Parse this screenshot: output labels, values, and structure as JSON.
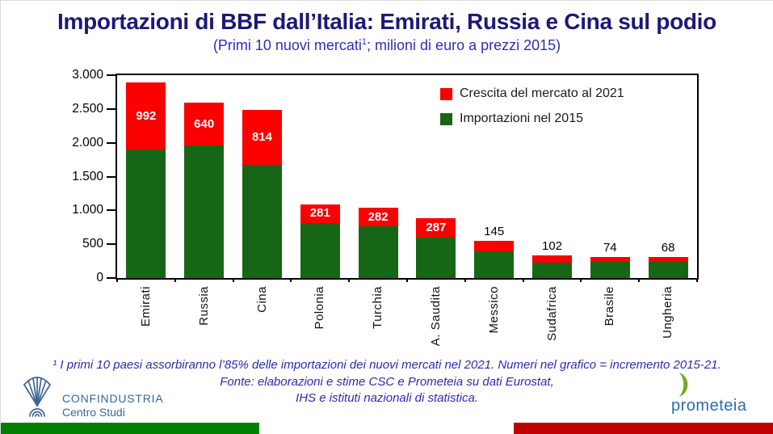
{
  "header": {
    "title": "Importazioni di BBF dall’Italia: Emirati, Russia e Cina sul podio",
    "subtitle_pre": "(Primi 10 nuovi mercati",
    "subtitle_sup": "1",
    "subtitle_post": "; milioni di euro a prezzi 2015)"
  },
  "colors": {
    "title": "#1d1878",
    "subtitle": "#2e2eb8",
    "footnote": "#2b2bb0"
  },
  "chart_data": {
    "type": "bar",
    "stacked": true,
    "categories": [
      "Emirati",
      "Russia",
      "Cina",
      "Polonia",
      "Turchia",
      "A. Saudita",
      "Messico",
      "Sudafrica",
      "Brasile",
      "Ungheria"
    ],
    "series": [
      {
        "name": "Importazioni nel 2015",
        "color": "#176617",
        "values": [
          1900,
          1955,
          1670,
          810,
          760,
          600,
          400,
          230,
          240,
          240
        ]
      },
      {
        "name": "Crescita del mercato al 2021",
        "color": "#fa0000",
        "values": [
          992,
          640,
          814,
          281,
          282,
          287,
          145,
          102,
          74,
          68
        ]
      }
    ],
    "data_labels": [
      992,
      640,
      814,
      281,
      282,
      287,
      145,
      102,
      74,
      68
    ],
    "ylim": [
      0,
      3000
    ],
    "yticks": [
      "3.000",
      "2.500",
      "2.000",
      "1.500",
      "1.000",
      "500",
      "0"
    ],
    "grid": false,
    "legend_position": "top-right-inside",
    "legend": [
      {
        "label": "Crescita del mercato al 2021",
        "color": "#fa0000"
      },
      {
        "label": "Importazioni nel 2015",
        "color": "#176617"
      }
    ]
  },
  "footnote": {
    "line1": "¹ I primi 10 paesi assorbiranno l’85% delle importazioni dei nuovi mercati nel 2021. Numeri nel grafico = incremento 2015-21.",
    "line2": "Fonte: elaborazioni e stime CSC e Prometeia  su dati Eurostat,",
    "line3": "IHS e istituti nazionali di statistica."
  },
  "logos": {
    "confindustria": {
      "name": "CONFINDUSTRIA",
      "sub": "Centro Studi",
      "color": "#3d6593"
    },
    "prometeia": {
      "name": "prometeia",
      "text_color": "#2b6cb0",
      "mark_color": "#76a829"
    }
  },
  "footer_flag": {
    "green": "#008000",
    "red": "#c00000"
  }
}
